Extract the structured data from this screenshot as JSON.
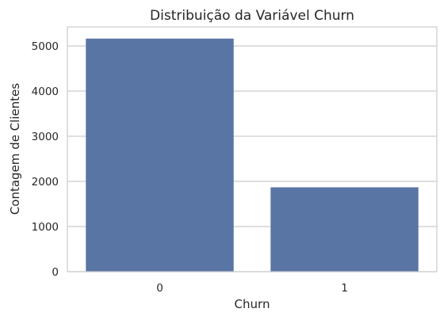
{
  "chart_data": {
    "type": "bar",
    "title": "Distribuição da Variável Churn",
    "xlabel": "Churn",
    "ylabel": "Contagem de Clientes",
    "categories": [
      "0",
      "1"
    ],
    "values": [
      5163,
      1869
    ],
    "ylim": [
      0,
      5421
    ],
    "yticks": [
      0,
      1000,
      2000,
      3000,
      4000,
      5000
    ],
    "grid": true,
    "grid_axis": "y",
    "bar_color": "#5975a4",
    "grid_color": "#cccccc",
    "frame_color": "#cccccc"
  }
}
